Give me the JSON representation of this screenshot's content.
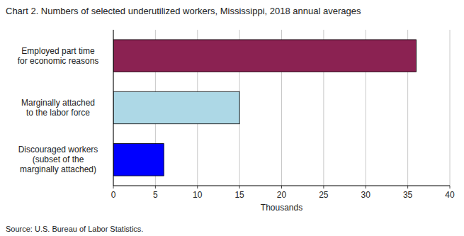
{
  "chart_data": {
    "type": "bar",
    "orientation": "horizontal",
    "title": "Chart 2. Numbers of selected underutilized workers, Mississippi, 2018 annual averages",
    "categories": [
      "Discouraged workers\n(subset of the\nmarginally attached)",
      "Marginally attached\nto the labor force",
      "Employed part time\nfor economic reasons"
    ],
    "values": [
      6.0,
      15.0,
      36.0
    ],
    "colors": [
      "#0000ff",
      "#add8e6",
      "#8b2252"
    ],
    "xlabel": "Thousands",
    "xlim": [
      0,
      40
    ],
    "xticks": [
      0,
      5,
      10,
      15,
      20,
      25,
      30,
      35,
      40
    ],
    "grid": true,
    "source": "Source: U.S. Bureau of Labor Statistics."
  }
}
